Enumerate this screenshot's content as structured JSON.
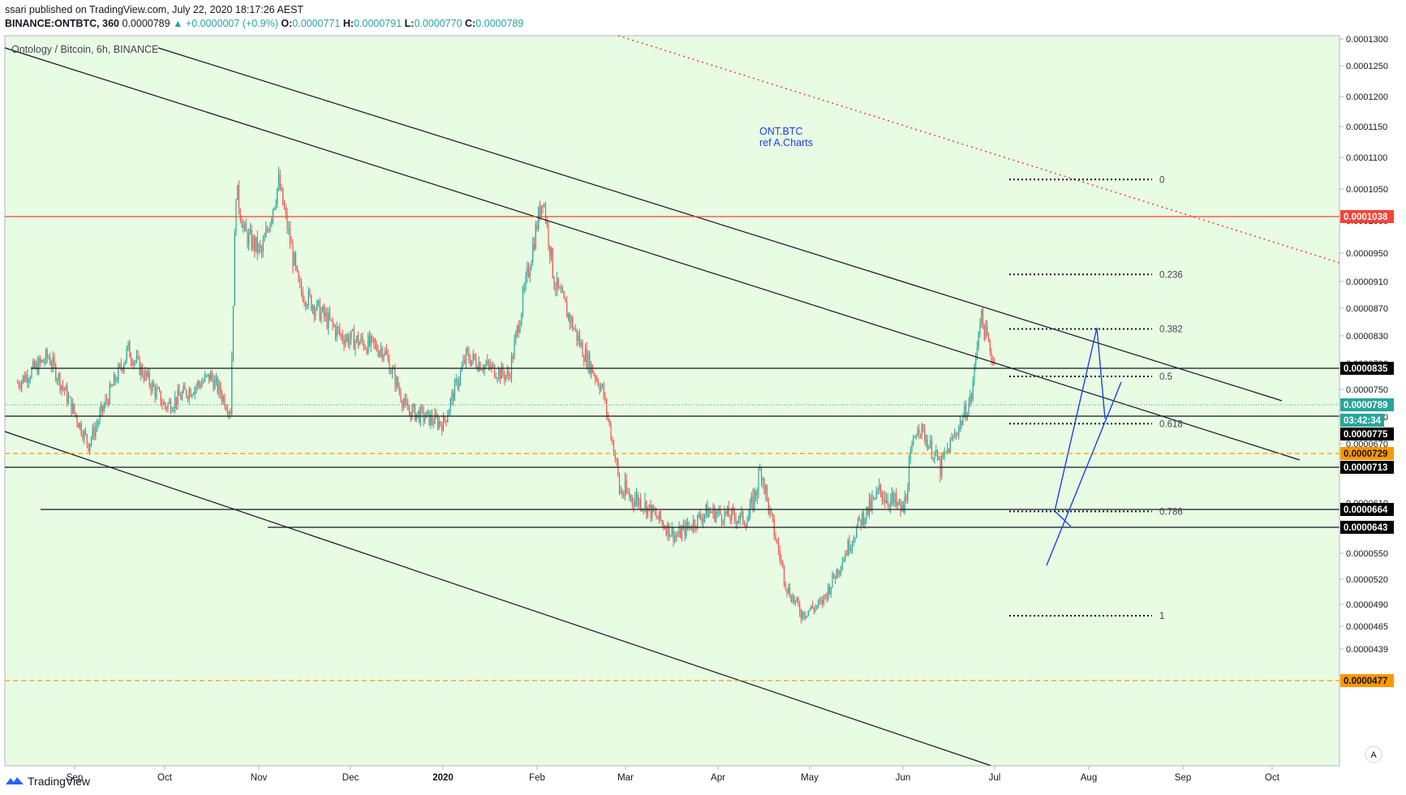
{
  "header": {
    "published": "ssari published on TradingView.com, July 22, 2020 18:17:26 AEST",
    "symbol": "BINANCE:ONTBTC, 360",
    "last": "0.0000789",
    "change": "+0.0000007 (+0.9%)",
    "open_label": "O:",
    "open": "0.0000771",
    "high_label": "H:",
    "high": "0.0000791",
    "low_label": "L:",
    "low": "0.0000770",
    "close_label": "C:",
    "close": "0.0000789"
  },
  "footer": {
    "brand": "TradingView"
  },
  "colors": {
    "plot_bg": "#e8fbe3",
    "up": "#26a69a",
    "down": "#ef5350",
    "resistance_red": "#f44336",
    "orange": "#ff9800",
    "blue": "#1e40e6"
  },
  "chart_data": {
    "type": "candlestick",
    "title": "Ontology / Bitcoin, 6h, BINANCE",
    "annotation": [
      "ONT.BTC",
      "ref A.Charts"
    ],
    "x_ticks": [
      "Sep",
      "Oct",
      "Nov",
      "Dec",
      "2020",
      "Feb",
      "Mar",
      "Apr",
      "May",
      "Jun",
      "Jul",
      "Aug",
      "Sep",
      "Oct"
    ],
    "y_ticks": [
      "0.0001300",
      "0.0001250",
      "0.0001200",
      "0.0001150",
      "0.0001100",
      "0.0001050",
      "0.0001000",
      "0.0000950",
      "0.0000910",
      "0.0000870",
      "0.0000830",
      "0.0000790",
      "0.0000750",
      "0.0000710",
      "0.0000670",
      "0.0000640",
      "0.0000610",
      "0.0000580",
      "0.0000550",
      "0.0000520",
      "0.0000490",
      "0.0000465",
      "0.0000439"
    ],
    "price_path": [
      [
        "2019-08-13",
        7.6e-05
      ],
      [
        "2019-08-24",
        8e-05
      ],
      [
        "2019-09-07",
        6.7e-05
      ],
      [
        "2019-09-21",
        8.1e-05
      ],
      [
        "2019-10-04",
        7.25e-05
      ],
      [
        "2019-10-20",
        7.7e-05
      ],
      [
        "2019-10-27",
        7.2e-05
      ],
      [
        "2019-10-29",
        0.000105
      ],
      [
        "2019-11-01",
        9.8e-05
      ],
      [
        "2019-11-07",
        9.5e-05
      ],
      [
        "2019-11-13",
        0.000106
      ],
      [
        "2019-11-20",
        9e-05
      ],
      [
        "2019-12-05",
        8.3e-05
      ],
      [
        "2019-12-20",
        8.1e-05
      ],
      [
        "2019-12-28",
        7.2e-05
      ],
      [
        "2020-01-10",
        7e-05
      ],
      [
        "2020-01-18",
        8e-05
      ],
      [
        "2020-02-02",
        7.7e-05
      ],
      [
        "2020-02-14",
        0.000104
      ],
      [
        "2020-02-18",
        9.1e-05
      ],
      [
        "2020-02-23",
        8.6e-05
      ],
      [
        "2020-02-28",
        8.1e-05
      ],
      [
        "2020-03-06",
        7.5e-05
      ],
      [
        "2020-03-12",
        6.2e-05
      ],
      [
        "2020-03-20",
        6.1e-05
      ],
      [
        "2020-04-01",
        5.7e-05
      ],
      [
        "2020-04-12",
        6e-05
      ],
      [
        "2020-04-26",
        5.9e-05
      ],
      [
        "2020-05-01",
        6.4e-05
      ],
      [
        "2020-05-10",
        5.1e-05
      ],
      [
        "2020-05-15",
        4.8e-05
      ],
      [
        "2020-05-22",
        4.9e-05
      ],
      [
        "2020-06-05",
        5.9e-05
      ],
      [
        "2020-06-12",
        6.2e-05
      ],
      [
        "2020-06-20",
        6e-05
      ],
      [
        "2020-06-25",
        7e-05
      ],
      [
        "2020-07-03",
        6.4e-05
      ],
      [
        "2020-07-10",
        7e-05
      ],
      [
        "2020-07-14",
        7.4e-05
      ],
      [
        "2020-07-17",
        8.6e-05
      ],
      [
        "2020-07-22",
        7.89e-05
      ]
    ],
    "price_labels": [
      {
        "value": "0.0001038",
        "kind": "resistance"
      },
      {
        "value": "0.0000835",
        "kind": "level"
      },
      {
        "value": "0.0000789",
        "kind": "last"
      },
      {
        "value": "03:42:34",
        "kind": "countdown"
      },
      {
        "value": "0.0000775",
        "kind": "level"
      },
      {
        "value": "0.0000729",
        "kind": "orange"
      },
      {
        "value": "0.0000713",
        "kind": "level"
      },
      {
        "value": "0.0000664",
        "kind": "level"
      },
      {
        "value": "0.0000643",
        "kind": "level"
      },
      {
        "value": "0.0000477",
        "kind": "orange"
      }
    ],
    "fib_levels": [
      {
        "label": "0",
        "price": 0.0001065
      },
      {
        "label": "0.236",
        "price": 9.2e-05
      },
      {
        "label": "0.382",
        "price": 8.4e-05
      },
      {
        "label": "0.5",
        "price": 7.7e-05
      },
      {
        "label": "0.618",
        "price": 7e-05
      },
      {
        "label": "0.786",
        "price": 6e-05
      },
      {
        "label": "1",
        "price": 4.77e-05
      }
    ],
    "axis_corner": "A"
  }
}
